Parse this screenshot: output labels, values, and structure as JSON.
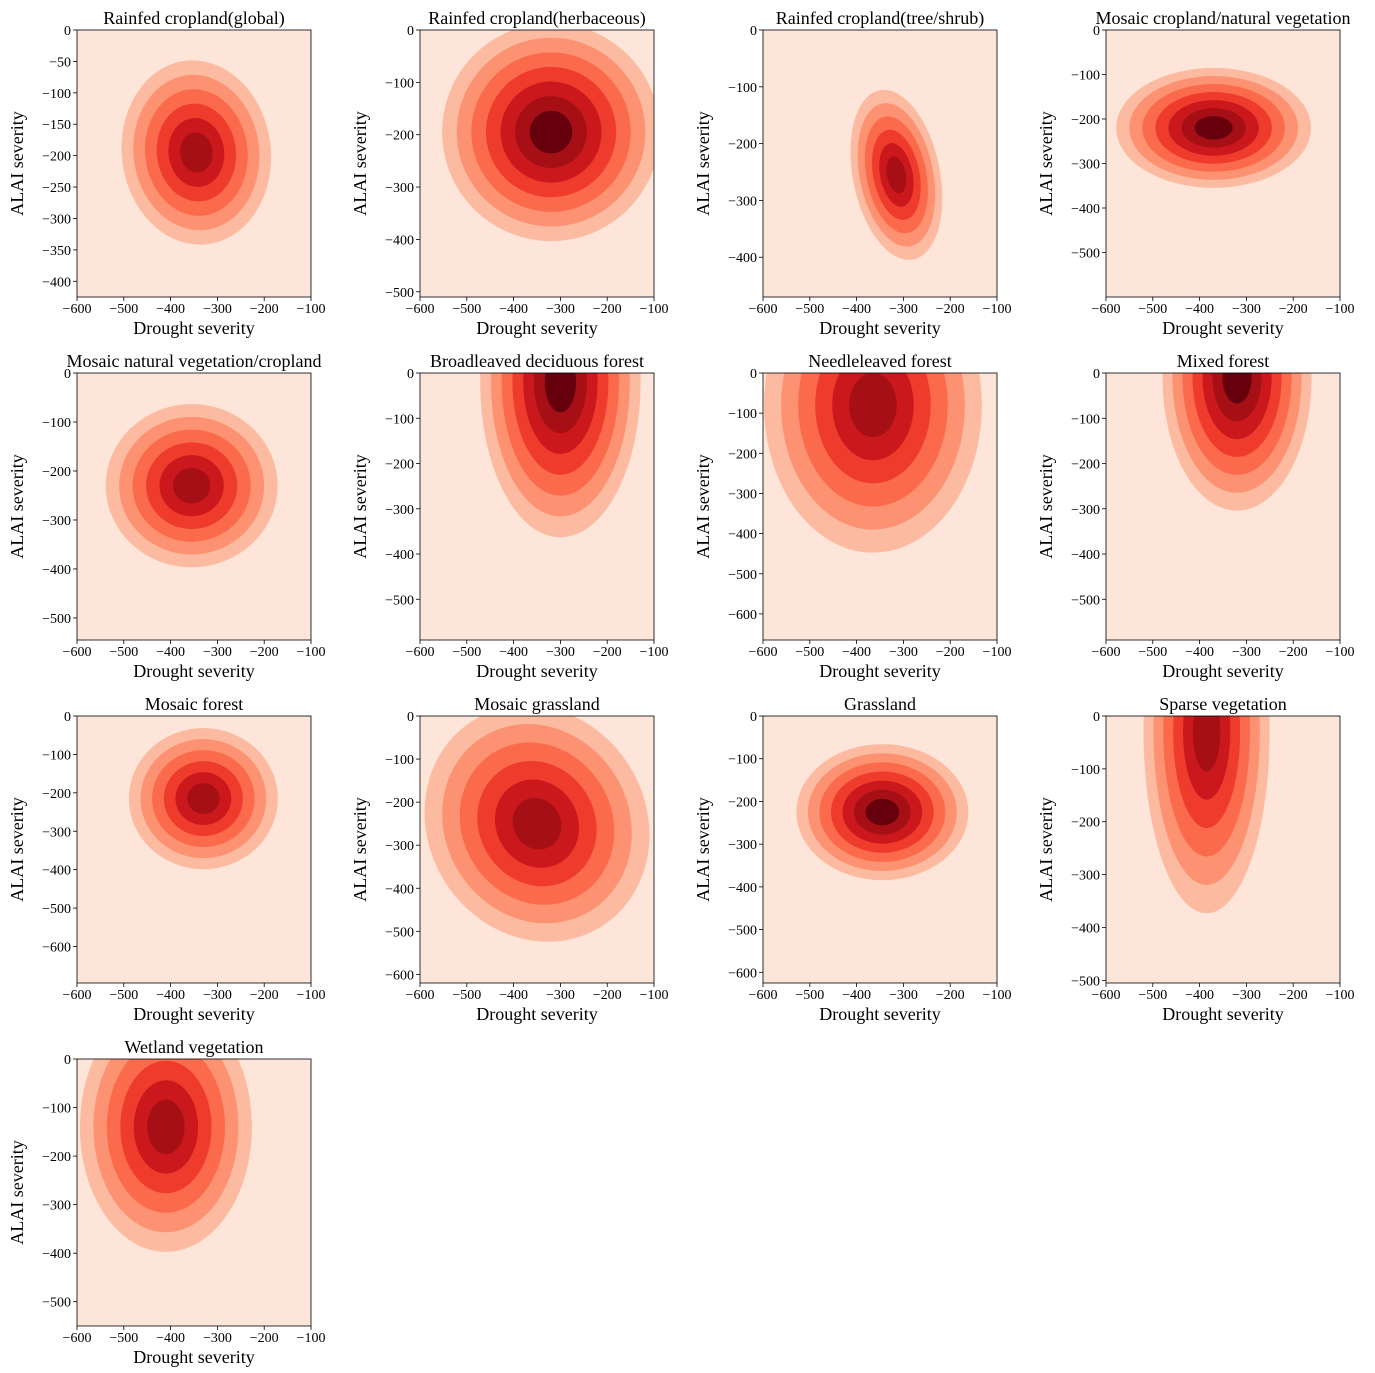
{
  "figure": {
    "common": {
      "xlabel": "Drought severity",
      "ylabel": "ALAI severity",
      "xticks": [
        -600,
        -500,
        -400,
        -300,
        -200,
        -100
      ],
      "xlim": [
        -600,
        -100
      ],
      "type": "kde-density (filled contour)",
      "colormap": [
        "#fee5d9",
        "#fcbba1",
        "#fc9272",
        "#fb6a4a",
        "#ef3b2c",
        "#cb181d",
        "#a50f15",
        "#67000d"
      ]
    }
  },
  "chart_data": [
    {
      "type": "heatmap",
      "title": "Rainfed cropland(global)",
      "xlabel": "Drought severity",
      "ylabel": "ALAI severity",
      "xlim": [
        -600,
        -100
      ],
      "ylim": [
        -425,
        0
      ],
      "yticks": [
        0,
        -50,
        -100,
        -150,
        -200,
        -250,
        -300,
        -350,
        -400
      ],
      "density": {
        "cx": -345,
        "cy": -195,
        "sx": 65,
        "sy": 60,
        "rot": 0.15,
        "peak_level": 6
      }
    },
    {
      "type": "heatmap",
      "title": "Rainfed cropland(herbaceous)",
      "xlabel": "Drought severity",
      "ylabel": "ALAI severity",
      "xlim": [
        -600,
        -100
      ],
      "ylim": [
        -510,
        0
      ],
      "yticks": [
        0,
        -100,
        -200,
        -300,
        -400,
        -500
      ],
      "density": {
        "cx": -320,
        "cy": -195,
        "sx": 95,
        "sy": 85,
        "rot": 0.5,
        "peak_level": 7
      }
    },
    {
      "type": "heatmap",
      "title": "Rainfed cropland(tree/shrub)",
      "xlabel": "Drought severity",
      "ylabel": "ALAI severity",
      "xlim": [
        -600,
        -100
      ],
      "ylim": [
        -470,
        0
      ],
      "yticks": [
        0,
        -100,
        -200,
        -300,
        -400
      ],
      "density": {
        "cx": -315,
        "cy": -255,
        "sx": 38,
        "sy": 62,
        "rot": 0.25,
        "peak_level": 6
      }
    },
    {
      "type": "heatmap",
      "title": "Mosaic cropland/natural vegetation",
      "xlabel": "Drought severity",
      "ylabel": "ALAI severity",
      "xlim": [
        -600,
        -100
      ],
      "ylim": [
        -600,
        0
      ],
      "yticks": [
        0,
        -100,
        -200,
        -300,
        -400,
        -500
      ],
      "density": {
        "cx": -370,
        "cy": -220,
        "sx": 85,
        "sy": 55,
        "rot": 0.0,
        "peak_level": 7
      }
    },
    {
      "type": "heatmap",
      "title": "Mosaic natural vegetation/cropland",
      "xlabel": "Drought severity",
      "ylabel": "ALAI severity",
      "xlim": [
        -600,
        -100
      ],
      "ylim": [
        -545,
        0
      ],
      "yticks": [
        0,
        -100,
        -200,
        -300,
        -400,
        -500
      ],
      "density": {
        "cx": -355,
        "cy": -230,
        "sx": 75,
        "sy": 68,
        "rot": 0.0,
        "peak_level": 6
      }
    },
    {
      "type": "heatmap",
      "title": "Broadleaved deciduous forest",
      "xlabel": "Drought severity",
      "ylabel": "ALAI severity",
      "xlim": [
        -600,
        -100
      ],
      "ylim": [
        -590,
        0
      ],
      "yticks": [
        0,
        -100,
        -200,
        -300,
        -400,
        -500
      ],
      "density": {
        "cx": -300,
        "cy": -20,
        "sx": 70,
        "sy": 140,
        "rot": 0.0,
        "peak_level": 7
      }
    },
    {
      "type": "heatmap",
      "title": "Needleleaved forest",
      "xlabel": "Drought severity",
      "ylabel": "ALAI severity",
      "xlim": [
        -600,
        -100
      ],
      "ylim": [
        -665,
        0
      ],
      "yticks": [
        0,
        -100,
        -200,
        -300,
        -400,
        -500,
        -600
      ],
      "density": {
        "cx": -365,
        "cy": -80,
        "sx": 95,
        "sy": 150,
        "rot": 0.0,
        "peak_level": 6
      }
    },
    {
      "type": "heatmap",
      "title": "Mixed forest",
      "xlabel": "Drought severity",
      "ylabel": "ALAI severity",
      "xlim": [
        -600,
        -100
      ],
      "ylim": [
        -590,
        0
      ],
      "yticks": [
        0,
        -100,
        -200,
        -300,
        -400,
        -500
      ],
      "density": {
        "cx": -320,
        "cy": -10,
        "sx": 65,
        "sy": 120,
        "rot": 0.0,
        "peak_level": 7
      }
    },
    {
      "type": "heatmap",
      "title": "Mosaic forest",
      "xlabel": "Drought severity",
      "ylabel": "ALAI severity",
      "xlim": [
        -600,
        -100
      ],
      "ylim": [
        -695,
        0
      ],
      "yticks": [
        0,
        -100,
        -200,
        -300,
        -400,
        -500,
        -600
      ],
      "density": {
        "cx": -330,
        "cy": -215,
        "sx": 65,
        "sy": 75,
        "rot": 0.0,
        "peak_level": 6
      }
    },
    {
      "type": "heatmap",
      "title": "Mosaic grassland",
      "xlabel": "Drought severity",
      "ylabel": "ALAI severity",
      "xlim": [
        -600,
        -100
      ],
      "ylim": [
        -620,
        0
      ],
      "yticks": [
        0,
        -100,
        -200,
        -300,
        -400,
        -500,
        -600
      ],
      "density": {
        "cx": -350,
        "cy": -250,
        "sx": 95,
        "sy": 115,
        "rot": 0.7,
        "peak_level": 6
      }
    },
    {
      "type": "heatmap",
      "title": "Grassland",
      "xlabel": "Drought severity",
      "ylabel": "ALAI severity",
      "xlim": [
        -600,
        -100
      ],
      "ylim": [
        -625,
        0
      ],
      "yticks": [
        0,
        -100,
        -200,
        -300,
        -400,
        -500,
        -600
      ],
      "density": {
        "cx": -345,
        "cy": -225,
        "sx": 75,
        "sy": 65,
        "rot": 0.0,
        "peak_level": 7
      }
    },
    {
      "type": "heatmap",
      "title": "Sparse vegetation",
      "xlabel": "Drought severity",
      "ylabel": "ALAI severity",
      "xlim": [
        -600,
        -100
      ],
      "ylim": [
        -505,
        0
      ],
      "yticks": [
        0,
        -100,
        -200,
        -300,
        -400,
        -500
      ],
      "density": {
        "cx": -385,
        "cy": -30,
        "sx": 55,
        "sy": 140,
        "rot": 0.0,
        "peak_level": 6
      }
    },
    {
      "type": "heatmap",
      "title": "Wetland vegetation",
      "xlabel": "Drought severity",
      "ylabel": "ALAI severity",
      "xlim": [
        -600,
        -100
      ],
      "ylim": [
        -550,
        0
      ],
      "yticks": [
        0,
        -100,
        -200,
        -300,
        -400,
        -500
      ],
      "density": {
        "cx": -410,
        "cy": -140,
        "sx": 75,
        "sy": 105,
        "rot": 0.0,
        "peak_level": 6
      }
    }
  ]
}
